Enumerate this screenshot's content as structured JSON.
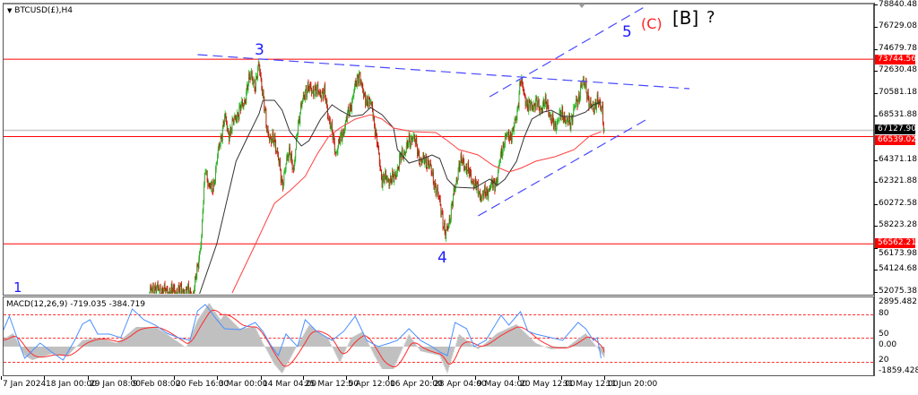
{
  "window": {
    "symbol_title": "BTCUSD(£),H4"
  },
  "price_axis": {
    "ticks": [
      "78840.48",
      "76729.08",
      "74679.78",
      "72630.48",
      "70581.18",
      "68531.88",
      "64371.18",
      "62321.88",
      "60272.58",
      "58223.28",
      "56173.98",
      "54124.68",
      "52075.38"
    ],
    "line_labels": [
      {
        "value": "73744.56",
        "color": "#ff0000"
      },
      {
        "value": "66539.02",
        "color": "#ff0000"
      },
      {
        "value": "56562.21",
        "color": "#ff0000"
      }
    ],
    "current_price": {
      "value": "67127.90",
      "color": "#000000"
    }
  },
  "time_axis": {
    "ticks": [
      "7 Jan 2024",
      "18 Jan 00:00",
      "29 Jan 08:00",
      "9 Feb 08:00",
      "20 Feb 16:00",
      "3 Mar 00:00",
      "14 Mar 04:00",
      "25 Mar 12:00",
      "5 Apr 12:00",
      "16 Apr 20:00",
      "28 Apr 04:00",
      "9 May 04:00",
      "20 May 12:00",
      "31 May 12:00",
      "11 Jun 20:00"
    ]
  },
  "annotations": {
    "wave_1": "1",
    "wave_3": "3",
    "wave_4": "4",
    "wave_5": "5",
    "wave_c": "(C)",
    "wave_b": "[B]",
    "question": "?",
    "colors": {
      "blue": "#1c1cff",
      "red": "#ff2020",
      "black": "#000000"
    }
  },
  "macd": {
    "title": "MACD(12,26,9) -719.035 -384.719",
    "axis_labels": [
      "2895.482",
      "80",
      "50",
      "0.00",
      "20",
      "-1859.428"
    ]
  },
  "chart_data": [
    {
      "type": "candlestick",
      "title": "BTCUSD(£),H4",
      "ylim": [
        52075.38,
        78840.48
      ],
      "colors": {
        "up": "#2ec82e",
        "down": "#e01010",
        "ma_fast": "#333333",
        "ma_slow": "#ff4040",
        "levels": "#ff0000",
        "trendlines": "#4848ff",
        "current": "#c8c8c8"
      },
      "close_path": [
        [
          "2024-02-14 12:00",
          51800
        ],
        [
          "2024-02-15",
          52400
        ],
        [
          "2024-02-19",
          52100
        ],
        [
          "2024-02-23",
          52200
        ],
        [
          "2024-02-26",
          51900
        ],
        [
          "2024-02-27",
          54490
        ],
        [
          "2024-02-28",
          57160
        ],
        [
          "2024-02-29",
          63830
        ],
        [
          "2024-03-01",
          61750
        ],
        [
          "2024-03-02",
          61750
        ],
        [
          "2024-03-03",
          64250
        ],
        [
          "2024-03-05",
          68420
        ],
        [
          "2024-03-06",
          66750
        ],
        [
          "2024-03-08",
          68420
        ],
        [
          "2024-03-10",
          69670
        ],
        [
          "2024-03-12",
          72590
        ],
        [
          "2024-03-13",
          70920
        ],
        [
          "2024-03-14",
          73590
        ],
        [
          "2024-03-15",
          70090
        ],
        [
          "2024-03-16",
          67580
        ],
        [
          "2024-03-17",
          65920
        ],
        [
          "2024-03-18",
          66500
        ],
        [
          "2024-03-20",
          62160
        ],
        [
          "2024-03-21",
          63830
        ],
        [
          "2024-03-22",
          65500
        ],
        [
          "2024-03-23",
          62990
        ],
        [
          "2024-03-24",
          67580
        ],
        [
          "2024-03-26",
          70920
        ],
        [
          "2024-03-28",
          70920
        ],
        [
          "2024-03-31",
          70500
        ],
        [
          "2024-04-02",
          66750
        ],
        [
          "2024-04-03",
          65080
        ],
        [
          "2024-04-05",
          67170
        ],
        [
          "2024-04-07",
          69670
        ],
        [
          "2024-04-09",
          72590
        ],
        [
          "2024-04-10",
          70500
        ],
        [
          "2024-04-12 12:00",
          69250
        ],
        [
          "2024-04-13 12:00",
          66330
        ],
        [
          "2024-04-15",
          62580
        ],
        [
          "2024-04-18",
          62580
        ],
        [
          "2024-04-20",
          64670
        ],
        [
          "2024-04-22",
          65920
        ],
        [
          "2024-04-23",
          66750
        ],
        [
          "2024-04-25",
          64250
        ],
        [
          "2024-04-27",
          64250
        ],
        [
          "2024-04-29",
          61750
        ],
        [
          "2024-04-30 12:00",
          59660
        ],
        [
          "2024-05-01 12:00",
          57160
        ],
        [
          "2024-05-02 12:00",
          58820
        ],
        [
          "2024-05-04",
          61750
        ],
        [
          "2024-05-05",
          63830
        ],
        [
          "2024-05-06",
          64250
        ],
        [
          "2024-05-09",
          62160
        ],
        [
          "2024-05-11",
          60910
        ],
        [
          "2024-05-13",
          61750
        ],
        [
          "2024-05-15",
          62580
        ],
        [
          "2024-05-16",
          65080
        ],
        [
          "2024-05-17",
          66330
        ],
        [
          "2024-05-19",
          66920
        ],
        [
          "2024-05-20",
          68420
        ],
        [
          "2024-05-21",
          71760
        ],
        [
          "2024-05-22",
          70500
        ],
        [
          "2024-05-23",
          69250
        ],
        [
          "2024-05-25",
          69670
        ],
        [
          "2024-05-26",
          69200
        ],
        [
          "2024-05-28",
          69670
        ],
        [
          "2024-05-29",
          68000
        ],
        [
          "2024-05-30",
          67580
        ],
        [
          "2024-06-01",
          68830
        ],
        [
          "2024-06-02",
          67750
        ],
        [
          "2024-06-03",
          68000
        ],
        [
          "2024-06-05",
          70090
        ],
        [
          "2024-06-06",
          71340
        ],
        [
          "2024-06-07",
          71500
        ],
        [
          "2024-06-08",
          69250
        ],
        [
          "2024-06-10",
          69670
        ],
        [
          "2024-06-11 08:00",
          69400
        ],
        [
          "2024-06-11 16:00",
          67300
        ],
        [
          "2024-06-11 20:00",
          67127.9
        ]
      ],
      "ma_fast": [
        [
          "2024-02-27 12:00",
          51910
        ],
        [
          "2024-03-03",
          56580
        ],
        [
          "2024-03-06",
          61160
        ],
        [
          "2024-03-08",
          64250
        ],
        [
          "2024-03-11",
          66500
        ],
        [
          "2024-03-14",
          68670
        ],
        [
          "2024-03-15",
          69920
        ],
        [
          "2024-03-18",
          69920
        ],
        [
          "2024-03-20",
          69000
        ],
        [
          "2024-03-22",
          67000
        ],
        [
          "2024-03-25",
          65670
        ],
        [
          "2024-03-27",
          66170
        ],
        [
          "2024-03-30",
          68170
        ],
        [
          "2024-04-02",
          69500
        ],
        [
          "2024-04-04",
          69000
        ],
        [
          "2024-04-07",
          68420
        ],
        [
          "2024-04-10",
          68580
        ],
        [
          "2024-04-12",
          69250
        ],
        [
          "2024-04-15",
          68580
        ],
        [
          "2024-04-18",
          67330
        ],
        [
          "2024-04-19",
          65330
        ],
        [
          "2024-04-22",
          64080
        ],
        [
          "2024-04-25",
          64410
        ],
        [
          "2024-04-28",
          64830
        ],
        [
          "2024-04-30",
          64500
        ],
        [
          "2024-05-02",
          62580
        ],
        [
          "2024-05-04",
          61830
        ],
        [
          "2024-05-09",
          61750
        ],
        [
          "2024-05-13",
          62580
        ],
        [
          "2024-05-15",
          62000
        ],
        [
          "2024-05-17",
          62580
        ],
        [
          "2024-05-20",
          64250
        ],
        [
          "2024-05-22",
          66500
        ],
        [
          "2024-05-24",
          68170
        ],
        [
          "2024-05-27",
          68830
        ],
        [
          "2024-05-29",
          69000
        ],
        [
          "2024-06-01",
          68420
        ],
        [
          "2024-06-04",
          68420
        ],
        [
          "2024-06-07",
          68830
        ],
        [
          "2024-06-09",
          69500
        ],
        [
          "2024-06-11",
          69750
        ]
      ],
      "ma_slow": [
        [
          "2024-03-07",
          51990
        ],
        [
          "2024-03-13",
          56490
        ],
        [
          "2024-03-18",
          60330
        ],
        [
          "2024-03-22",
          61500
        ],
        [
          "2024-03-26",
          62830
        ],
        [
          "2024-03-29",
          64830
        ],
        [
          "2024-04-01",
          66500
        ],
        [
          "2024-04-04",
          67330
        ],
        [
          "2024-04-08",
          68170
        ],
        [
          "2024-04-12",
          68580
        ],
        [
          "2024-04-15",
          68170
        ],
        [
          "2024-04-18",
          67330
        ],
        [
          "2024-04-23",
          67000
        ],
        [
          "2024-04-29",
          66920
        ],
        [
          "2024-05-02",
          66170
        ],
        [
          "2024-05-05",
          65330
        ],
        [
          "2024-05-10",
          64830
        ],
        [
          "2024-05-14",
          63830
        ],
        [
          "2024-05-18",
          63250
        ],
        [
          "2024-05-21",
          63580
        ],
        [
          "2024-05-25",
          64250
        ],
        [
          "2024-05-30",
          64670
        ],
        [
          "2024-06-04",
          65330
        ],
        [
          "2024-06-08",
          66580
        ],
        [
          "2024-06-11",
          67000
        ]
      ],
      "horizontal_levels": [
        73744.56,
        66539.02,
        56562.21
      ],
      "current_price": 67127.9,
      "trendlines": [
        [
          [
            "2024-02-27",
            74170
          ],
          [
            "2024-07-04",
            71000
          ]
        ],
        [
          [
            "2024-05-13",
            70250
          ],
          [
            "2024-06-23",
            78760
          ]
        ],
        [
          [
            "2024-05-10",
            59160
          ],
          [
            "2024-06-23",
            68170
          ]
        ]
      ]
    },
    {
      "type": "line",
      "title": "MACD(12,26,9) -719.035 -384.719",
      "ylim": [
        -1859.428,
        2895.482
      ],
      "colors": {
        "histogram": "#c0c0c0",
        "signal": "#ff2a2a",
        "overlay": "#4a90ff",
        "levels": "#ff3030"
      },
      "levels": [
        80,
        50,
        20
      ],
      "main": [
        [
          "2024-01-07",
          413
        ],
        [
          "2024-01-10",
          885
        ],
        [
          "2024-01-13",
          -590
        ],
        [
          "2024-01-15",
          -885
        ],
        [
          "2024-01-20",
          -470
        ],
        [
          "2024-01-24",
          -650
        ],
        [
          "2024-01-28",
          413
        ],
        [
          "2024-02-01",
          590
        ],
        [
          "2024-02-06",
          236
        ],
        [
          "2024-02-11",
          1300
        ],
        [
          "2024-02-16",
          1300
        ],
        [
          "2024-02-19",
          826
        ],
        [
          "2024-02-24",
          -60
        ],
        [
          "2024-02-27",
          1770
        ],
        [
          "2024-03-01",
          2890
        ],
        [
          "2024-03-04",
          1770
        ],
        [
          "2024-03-05",
          2180
        ],
        [
          "2024-03-09",
          1180
        ],
        [
          "2024-03-13",
          1300
        ],
        [
          "2024-03-15",
          236
        ],
        [
          "2024-03-18",
          -1180
        ],
        [
          "2024-03-20",
          -1770
        ],
        [
          "2024-03-23",
          -354
        ],
        [
          "2024-03-27",
          1416
        ],
        [
          "2024-04-01",
          531
        ],
        [
          "2024-04-04",
          -1060
        ],
        [
          "2024-04-07",
          590
        ],
        [
          "2024-04-10",
          1000
        ],
        [
          "2024-04-13",
          -590
        ],
        [
          "2024-04-15",
          -1475
        ],
        [
          "2024-04-18",
          -1475
        ],
        [
          "2024-04-22",
          826
        ],
        [
          "2024-04-25",
          -295
        ],
        [
          "2024-04-30",
          -590
        ],
        [
          "2024-05-02",
          -1770
        ],
        [
          "2024-05-05",
          826
        ],
        [
          "2024-05-10",
          -177
        ],
        [
          "2024-05-15",
          885
        ],
        [
          "2024-05-20",
          1475
        ],
        [
          "2024-05-25",
          236
        ],
        [
          "2024-05-29",
          -177
        ],
        [
          "2024-06-02",
          -59
        ],
        [
          "2024-06-07",
          885
        ],
        [
          "2024-06-10",
          -59
        ],
        [
          "2024-06-11 20:00",
          -719.035
        ]
      ],
      "signal_last": -384.719,
      "overlay": [
        [
          "2024-01-07",
          826
        ],
        [
          "2024-01-09",
          2006
        ],
        [
          "2024-01-11",
          590
        ],
        [
          "2024-01-13",
          -767
        ],
        [
          "2024-01-17",
          236
        ],
        [
          "2024-01-20",
          -354
        ],
        [
          "2024-01-23",
          -885
        ],
        [
          "2024-01-26",
          413
        ],
        [
          "2024-01-28",
          1475
        ],
        [
          "2024-01-30",
          1770
        ],
        [
          "2024-02-01",
          826
        ],
        [
          "2024-02-04",
          826
        ],
        [
          "2024-02-07",
          590
        ],
        [
          "2024-02-10",
          2478
        ],
        [
          "2024-02-13",
          1770
        ],
        [
          "2024-02-16",
          1416
        ],
        [
          "2024-02-19",
          885
        ],
        [
          "2024-02-22",
          590
        ],
        [
          "2024-02-25",
          413
        ],
        [
          "2024-02-27",
          2360
        ],
        [
          "2024-02-29",
          2773
        ],
        [
          "2024-03-03",
          1770
        ],
        [
          "2024-03-05",
          1180
        ],
        [
          "2024-03-09",
          1121
        ],
        [
          "2024-03-13",
          1593
        ],
        [
          "2024-03-15",
          1003
        ],
        [
          "2024-03-17",
          118
        ],
        [
          "2024-03-19",
          -590
        ],
        [
          "2024-03-21",
          826
        ],
        [
          "2024-03-24",
          0
        ],
        [
          "2024-03-26",
          1770
        ],
        [
          "2024-03-29",
          1003
        ],
        [
          "2024-04-02",
          413
        ],
        [
          "2024-04-05",
          1003
        ],
        [
          "2024-04-08",
          2006
        ],
        [
          "2024-04-11",
          413
        ],
        [
          "2024-04-14",
          0
        ],
        [
          "2024-04-17",
          236
        ],
        [
          "2024-04-19",
          413
        ],
        [
          "2024-04-22",
          1180
        ],
        [
          "2024-04-25",
          413
        ],
        [
          "2024-04-28",
          0
        ],
        [
          "2024-04-30",
          -354
        ],
        [
          "2024-05-02",
          -590
        ],
        [
          "2024-05-04",
          1593
        ],
        [
          "2024-05-07",
          1180
        ],
        [
          "2024-05-09",
          0
        ],
        [
          "2024-05-12",
          413
        ],
        [
          "2024-05-16",
          2065
        ],
        [
          "2024-05-18",
          1416
        ],
        [
          "2024-05-21",
          2301
        ],
        [
          "2024-05-23",
          1003
        ],
        [
          "2024-05-25",
          826
        ],
        [
          "2024-05-29",
          590
        ],
        [
          "2024-06-01",
          413
        ],
        [
          "2024-06-05",
          1593
        ],
        [
          "2024-06-07",
          1180
        ],
        [
          "2024-06-09",
          413
        ],
        [
          "2024-06-10",
          590
        ],
        [
          "2024-06-11",
          -767
        ]
      ]
    }
  ]
}
